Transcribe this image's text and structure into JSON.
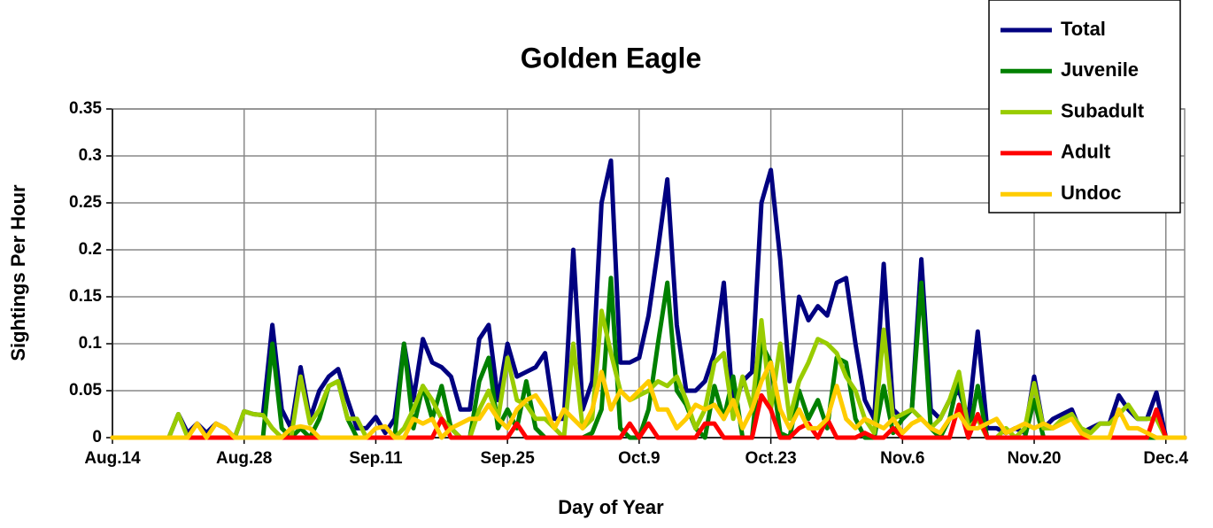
{
  "chart_data": {
    "type": "line",
    "title": "Golden Eagle",
    "xlabel": "Day of Year",
    "ylabel": "Sightings Per Hour",
    "x": [
      226,
      227,
      228,
      229,
      230,
      231,
      232,
      233,
      234,
      235,
      236,
      237,
      238,
      239,
      240,
      241,
      242,
      243,
      244,
      245,
      246,
      247,
      248,
      249,
      250,
      251,
      252,
      253,
      254,
      255,
      256,
      257,
      258,
      259,
      260,
      261,
      262,
      263,
      264,
      265,
      266,
      267,
      268,
      269,
      270,
      271,
      272,
      273,
      274,
      275,
      276,
      277,
      278,
      279,
      280,
      281,
      282,
      283,
      284,
      285,
      286,
      287,
      288,
      289,
      290,
      291,
      292,
      293,
      294,
      295,
      296,
      297,
      298,
      299,
      300,
      301,
      302,
      303,
      304,
      305,
      306,
      307,
      308,
      309,
      310,
      311,
      312,
      313,
      314,
      315,
      316,
      317,
      318,
      319,
      320,
      321,
      322,
      323,
      324,
      325,
      326,
      327,
      328,
      329,
      330,
      331,
      332,
      333,
      334,
      335,
      336,
      337,
      338,
      339,
      340
    ],
    "series": [
      {
        "name": "Total",
        "color": "#000080",
        "values": [
          0,
          0,
          0,
          0,
          0,
          0,
          0,
          0.025,
          0.005,
          0.015,
          0.005,
          0.015,
          0.01,
          0,
          0.028,
          0.025,
          0.024,
          0.12,
          0.03,
          0.01,
          0.075,
          0.02,
          0.05,
          0.065,
          0.073,
          0.04,
          0.01,
          0.01,
          0.022,
          0.005,
          0.02,
          0.1,
          0.04,
          0.105,
          0.08,
          0.075,
          0.065,
          0.03,
          0.03,
          0.105,
          0.12,
          0.04,
          0.1,
          0.065,
          0.07,
          0.075,
          0.09,
          0.02,
          0.02,
          0.2,
          0.03,
          0.06,
          0.25,
          0.295,
          0.08,
          0.08,
          0.085,
          0.13,
          0.2,
          0.275,
          0.12,
          0.05,
          0.05,
          0.06,
          0.09,
          0.165,
          0.03,
          0.06,
          0.07,
          0.25,
          0.285,
          0.19,
          0.06,
          0.15,
          0.125,
          0.14,
          0.13,
          0.165,
          0.17,
          0.1,
          0.04,
          0.02,
          0.185,
          0.03,
          0.02,
          0.03,
          0.19,
          0.03,
          0.02,
          0.04,
          0.05,
          0.02,
          0.113,
          0.01,
          0.01,
          0.005,
          0.01,
          0.005,
          0.065,
          0.01,
          0.02,
          0.025,
          0.03,
          0.005,
          0.01,
          0.015,
          0.015,
          0.045,
          0.03,
          0.02,
          0.02,
          0.048,
          0,
          0,
          0
        ]
      },
      {
        "name": "Juvenile",
        "color": "#008000",
        "values": [
          0,
          0,
          0,
          0,
          0,
          0,
          0,
          0,
          0,
          0,
          0,
          0,
          0,
          0,
          0,
          0,
          0,
          0.1,
          0.01,
          0,
          0.01,
          0,
          0.02,
          0.055,
          0.06,
          0.02,
          0,
          0,
          0,
          0,
          0,
          0.1,
          0.01,
          0.055,
          0.02,
          0.055,
          0.01,
          0,
          0,
          0.06,
          0.085,
          0.01,
          0.03,
          0.01,
          0.06,
          0.01,
          0,
          0,
          0,
          0,
          0,
          0.005,
          0.03,
          0.17,
          0.01,
          0,
          0,
          0.03,
          0.1,
          0.165,
          0.05,
          0.035,
          0.01,
          0,
          0.055,
          0.02,
          0.065,
          0,
          0,
          0.1,
          0.08,
          0.005,
          0,
          0.05,
          0.02,
          0.04,
          0.01,
          0.085,
          0.08,
          0.02,
          0,
          0,
          0.055,
          0.005,
          0.02,
          0.03,
          0.165,
          0.01,
          0,
          0.02,
          0.065,
          0,
          0.055,
          0,
          0,
          0,
          0,
          0,
          0.04,
          0,
          0,
          0,
          0,
          0,
          0,
          0,
          0,
          0,
          0,
          0,
          0,
          0,
          0,
          0,
          0
        ]
      },
      {
        "name": "Subadult",
        "color": "#99cc00",
        "values": [
          0,
          0,
          0,
          0,
          0,
          0,
          0,
          0.025,
          0,
          0,
          0,
          0,
          0,
          0,
          0.028,
          0.025,
          0.024,
          0.01,
          0,
          0,
          0.065,
          0.015,
          0.03,
          0.055,
          0.06,
          0.02,
          0.02,
          0,
          0,
          0,
          0,
          0.01,
          0.03,
          0.055,
          0.04,
          0.02,
          0.01,
          0,
          0,
          0.03,
          0.05,
          0.02,
          0.085,
          0.04,
          0.035,
          0.02,
          0.02,
          0.01,
          0,
          0.1,
          0.01,
          0.02,
          0.135,
          0.09,
          0.05,
          0.04,
          0.045,
          0.05,
          0.06,
          0.055,
          0.065,
          0.04,
          0.01,
          0.03,
          0.08,
          0.09,
          0.02,
          0.065,
          0.03,
          0.125,
          0.03,
          0.1,
          0.02,
          0.06,
          0.08,
          0.105,
          0.1,
          0.09,
          0.065,
          0.05,
          0.02,
          0.005,
          0.115,
          0.02,
          0.025,
          0.03,
          0.02,
          0.01,
          0.02,
          0.04,
          0.07,
          0.01,
          0.02,
          0,
          0,
          0.01,
          0,
          0.01,
          0.058,
          0.01,
          0.01,
          0.02,
          0.025,
          0.01,
          0.005,
          0.015,
          0.015,
          0.025,
          0.035,
          0.02,
          0.02,
          0.02,
          0,
          0,
          0
        ]
      },
      {
        "name": "Adult",
        "color": "#ff0000",
        "values": [
          0,
          0,
          0,
          0,
          0,
          0,
          0,
          0,
          0,
          0,
          0,
          0,
          0,
          0,
          0,
          0,
          0,
          0,
          0,
          0,
          0,
          0,
          0,
          0,
          0,
          0,
          0,
          0,
          0,
          0,
          0,
          0,
          0,
          0,
          0,
          0.02,
          0,
          0,
          0,
          0,
          0,
          0,
          0,
          0.015,
          0,
          0,
          0,
          0,
          0,
          0,
          0,
          0,
          0,
          0,
          0,
          0.015,
          0,
          0.015,
          0,
          0,
          0,
          0,
          0,
          0.015,
          0.015,
          0,
          0,
          0,
          0,
          0.045,
          0.03,
          0,
          0,
          0.01,
          0.015,
          0,
          0.02,
          0,
          0,
          0,
          0.005,
          0,
          0,
          0.01,
          0,
          0,
          0,
          0,
          0,
          0,
          0.035,
          0,
          0.025,
          0,
          0,
          0,
          0,
          0,
          0,
          0,
          0,
          0,
          0,
          0,
          0,
          0,
          0,
          0,
          0,
          0,
          0,
          0.03,
          0,
          0,
          0
        ]
      },
      {
        "name": "Undoc",
        "color": "#ffcc00",
        "values": [
          0,
          0,
          0,
          0,
          0,
          0,
          0,
          0,
          0,
          0.015,
          0,
          0.015,
          0.01,
          0,
          0,
          0,
          0,
          0,
          0,
          0.01,
          0.012,
          0.01,
          0,
          0,
          0,
          0,
          0,
          0,
          0.01,
          0.012,
          0,
          0,
          0.02,
          0.015,
          0.02,
          0,
          0.01,
          0.015,
          0.02,
          0.02,
          0.035,
          0.02,
          0.01,
          0.03,
          0.04,
          0.045,
          0.03,
          0.01,
          0.03,
          0.02,
          0.01,
          0.03,
          0.07,
          0.03,
          0.05,
          0.04,
          0.05,
          0.06,
          0.03,
          0.03,
          0.01,
          0.02,
          0.035,
          0.03,
          0.035,
          0.02,
          0.04,
          0.01,
          0.03,
          0.06,
          0.08,
          0.03,
          0.01,
          0.03,
          0.01,
          0.01,
          0.02,
          0.055,
          0.02,
          0.01,
          0.02,
          0.015,
          0.01,
          0.02,
          0.005,
          0.015,
          0.02,
          0.01,
          0.005,
          0.02,
          0.025,
          0.01,
          0.01,
          0.015,
          0.02,
          0.005,
          0.01,
          0.015,
          0.01,
          0.015,
          0.01,
          0.015,
          0.02,
          0.005,
          0,
          0,
          0,
          0.03,
          0.01,
          0.01,
          0.005,
          0,
          0,
          0,
          0
        ]
      }
    ],
    "xlim": [
      226,
      340
    ],
    "xticks": [
      {
        "value": 226,
        "label": "Aug.14"
      },
      {
        "value": 240,
        "label": "Aug.28"
      },
      {
        "value": 254,
        "label": "Sep.11"
      },
      {
        "value": 268,
        "label": "Sep.25"
      },
      {
        "value": 282,
        "label": "Oct.9"
      },
      {
        "value": 296,
        "label": "Oct.23"
      },
      {
        "value": 310,
        "label": "Nov.6"
      },
      {
        "value": 324,
        "label": "Nov.20"
      },
      {
        "value": 338,
        "label": "Dec.4"
      }
    ],
    "ylim": [
      0,
      0.35
    ],
    "yticks": [
      0,
      0.05,
      0.1,
      0.15,
      0.2,
      0.25,
      0.3,
      0.35
    ],
    "grid": true,
    "legend": "upper right"
  }
}
